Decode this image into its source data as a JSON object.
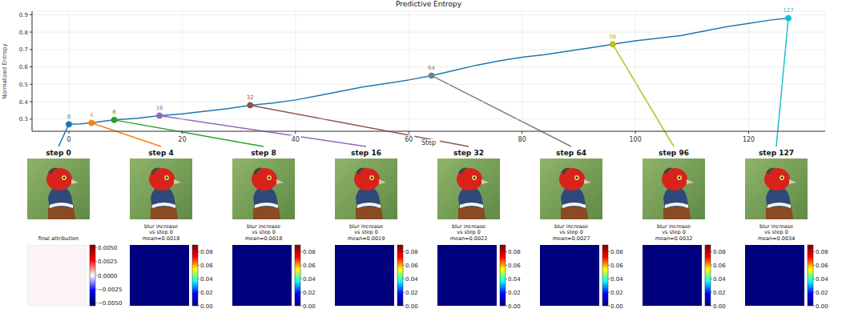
{
  "chart_data": {
    "type": "line",
    "title": "Predictive Entropy",
    "x_label": "Step",
    "y_label": "Normalized Entropy",
    "x": [
      0,
      2,
      4,
      6,
      8,
      12,
      16,
      20,
      24,
      28,
      32,
      36,
      40,
      44,
      48,
      52,
      56,
      60,
      64,
      68,
      72,
      76,
      80,
      84,
      88,
      92,
      96,
      100,
      104,
      108,
      112,
      116,
      120,
      124,
      127
    ],
    "values": [
      0.27,
      0.272,
      0.278,
      0.287,
      0.295,
      0.305,
      0.32,
      0.33,
      0.345,
      0.36,
      0.38,
      0.392,
      0.41,
      0.435,
      0.46,
      0.485,
      0.505,
      0.525,
      0.55,
      0.58,
      0.61,
      0.635,
      0.655,
      0.67,
      0.69,
      0.71,
      0.73,
      0.75,
      0.765,
      0.78,
      0.805,
      0.83,
      0.85,
      0.87,
      0.88
    ],
    "color": "#1f77b4",
    "xlim": [
      -6.5,
      133.5
    ],
    "xticks": [
      0,
      20,
      40,
      60,
      80,
      100,
      120
    ],
    "ylim": [
      0.23,
      0.92
    ],
    "yticks": [
      0.3,
      0.4,
      0.5,
      0.6,
      0.7,
      0.8,
      0.9
    ],
    "grid": true,
    "annotations": [
      {
        "x": 0,
        "y": 0.27,
        "color": "#1f77b4"
      },
      {
        "x": 4,
        "y": 0.278,
        "color": "#ff7f0e"
      },
      {
        "x": 8,
        "y": 0.295,
        "color": "#2ca02c"
      },
      {
        "x": 16,
        "y": 0.32,
        "color": "#9467bd"
      },
      {
        "x": 32,
        "y": 0.38,
        "color": "#8c564b"
      },
      {
        "x": 64,
        "y": 0.55,
        "color": "#7f7f7f"
      },
      {
        "x": 96,
        "y": 0.73,
        "color": "#bcbd22"
      },
      {
        "x": 127,
        "y": 0.88,
        "color": "#17becf"
      }
    ]
  },
  "panels": {
    "images": [
      {
        "title": "step 0"
      },
      {
        "title": "step 4"
      },
      {
        "title": "step 8"
      },
      {
        "title": "step 16"
      },
      {
        "title": "step 32"
      },
      {
        "title": "step 64"
      },
      {
        "title": "step 96"
      },
      {
        "title": "step 127"
      }
    ],
    "maps": [
      {
        "title": [
          "final attribution"
        ],
        "colorbar": {
          "lim": [
            -0.0055,
            0.0055
          ],
          "ticks": [
            {
              "value": 0.005,
              "label": "0.0050"
            },
            {
              "value": 0.0025,
              "label": "0.0025"
            },
            {
              "value": 0,
              "label": "0.0000"
            },
            {
              "value": -0.0025,
              "label": "−0.0025"
            },
            {
              "value": -0.005,
              "label": "−0.0050"
            }
          ]
        }
      },
      {
        "title": [
          "blur increase",
          "vs step 0",
          "mean=0.0018"
        ],
        "colorbar": {
          "lim": [
            0,
            0.09
          ],
          "ticks": [
            {
              "value": 0.08,
              "label": "0.08"
            },
            {
              "value": 0.06,
              "label": "0.06"
            },
            {
              "value": 0.04,
              "label": "0.04"
            },
            {
              "value": 0.02,
              "label": "0.02"
            },
            {
              "value": 0,
              "label": "0.00"
            }
          ]
        }
      },
      {
        "title": [
          "blur increase",
          "vs step 0",
          "mean=0.0018"
        ],
        "colorbar": {
          "lim": [
            0,
            0.09
          ],
          "ticks": [
            {
              "value": 0.08,
              "label": "0.08"
            },
            {
              "value": 0.06,
              "label": "0.06"
            },
            {
              "value": 0.04,
              "label": "0.04"
            },
            {
              "value": 0.02,
              "label": "0.02"
            },
            {
              "value": 0,
              "label": "0.00"
            }
          ]
        }
      },
      {
        "title": [
          "blur increase",
          "vs step 0",
          "mean=0.0019"
        ],
        "colorbar": {
          "lim": [
            0,
            0.09
          ],
          "ticks": [
            {
              "value": 0.08,
              "label": "0.08"
            },
            {
              "value": 0.06,
              "label": "0.06"
            },
            {
              "value": 0.04,
              "label": "0.04"
            },
            {
              "value": 0.02,
              "label": "0.02"
            },
            {
              "value": 0,
              "label": "0.00"
            }
          ]
        }
      },
      {
        "title": [
          "blur increase",
          "vs step 0",
          "mean=0.0022"
        ],
        "colorbar": {
          "lim": [
            0,
            0.09
          ],
          "ticks": [
            {
              "value": 0.08,
              "label": "0.08"
            },
            {
              "value": 0.06,
              "label": "0.06"
            },
            {
              "value": 0.04,
              "label": "0.04"
            },
            {
              "value": 0.02,
              "label": "0.02"
            },
            {
              "value": 0,
              "label": "0.00"
            }
          ]
        }
      },
      {
        "title": [
          "blur increase",
          "vs step 0",
          "mean=0.0027"
        ],
        "colorbar": {
          "lim": [
            0,
            0.09
          ],
          "ticks": [
            {
              "value": 0.08,
              "label": "0.08"
            },
            {
              "value": 0.06,
              "label": "0.06"
            },
            {
              "value": 0.04,
              "label": "0.04"
            },
            {
              "value": 0.02,
              "label": "0.02"
            },
            {
              "value": 0,
              "label": "0.00"
            }
          ]
        }
      },
      {
        "title": [
          "blur increase",
          "vs step 0",
          "mean=0.0032"
        ],
        "colorbar": {
          "lim": [
            0,
            0.09
          ],
          "ticks": [
            {
              "value": 0.08,
              "label": "0.08"
            },
            {
              "value": 0.06,
              "label": "0.06"
            },
            {
              "value": 0.04,
              "label": "0.04"
            },
            {
              "value": 0.02,
              "label": "0.02"
            },
            {
              "value": 0,
              "label": "0.00"
            }
          ]
        }
      },
      {
        "title": [
          "blur increase",
          "vs step 0",
          "mean=0.0034"
        ],
        "colorbar": {
          "lim": [
            0,
            0.09
          ],
          "ticks": [
            {
              "value": 0.08,
              "label": "0.08"
            },
            {
              "value": 0.06,
              "label": "0.06"
            },
            {
              "value": 0.04,
              "label": "0.04"
            },
            {
              "value": 0.02,
              "label": "0.02"
            },
            {
              "value": 0,
              "label": "0.00"
            }
          ]
        }
      }
    ]
  }
}
